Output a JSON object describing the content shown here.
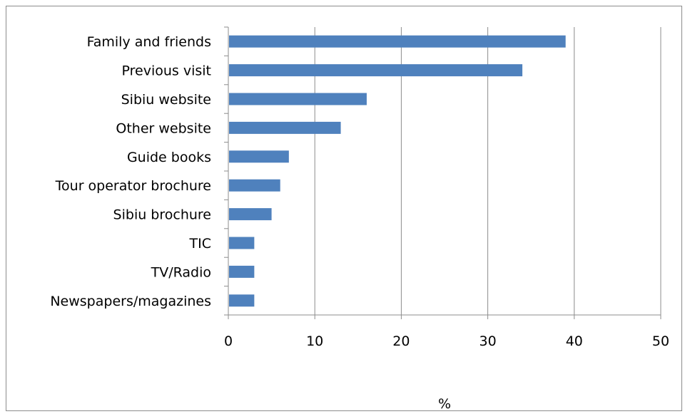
{
  "chart_data": {
    "type": "bar",
    "orientation": "horizontal",
    "categories": [
      "Family and friends",
      "Previous visit",
      "Sibiu website",
      "Other website",
      "Guide books",
      "Tour operator brochure",
      "Sibiu brochure",
      "TIC",
      "TV/Radio",
      "Newspapers/magazines"
    ],
    "values": [
      39,
      34,
      16,
      13,
      7,
      6,
      5,
      3,
      3,
      3
    ],
    "title": "",
    "xlabel": "%",
    "ylabel": "",
    "xlim": [
      0,
      50
    ],
    "xticks": [
      "0",
      "10",
      "20",
      "30",
      "40",
      "50"
    ],
    "grid": "vertical",
    "legend": "none",
    "bar_color": "#4f81bd",
    "gridline_color": "#8c8c8c"
  }
}
